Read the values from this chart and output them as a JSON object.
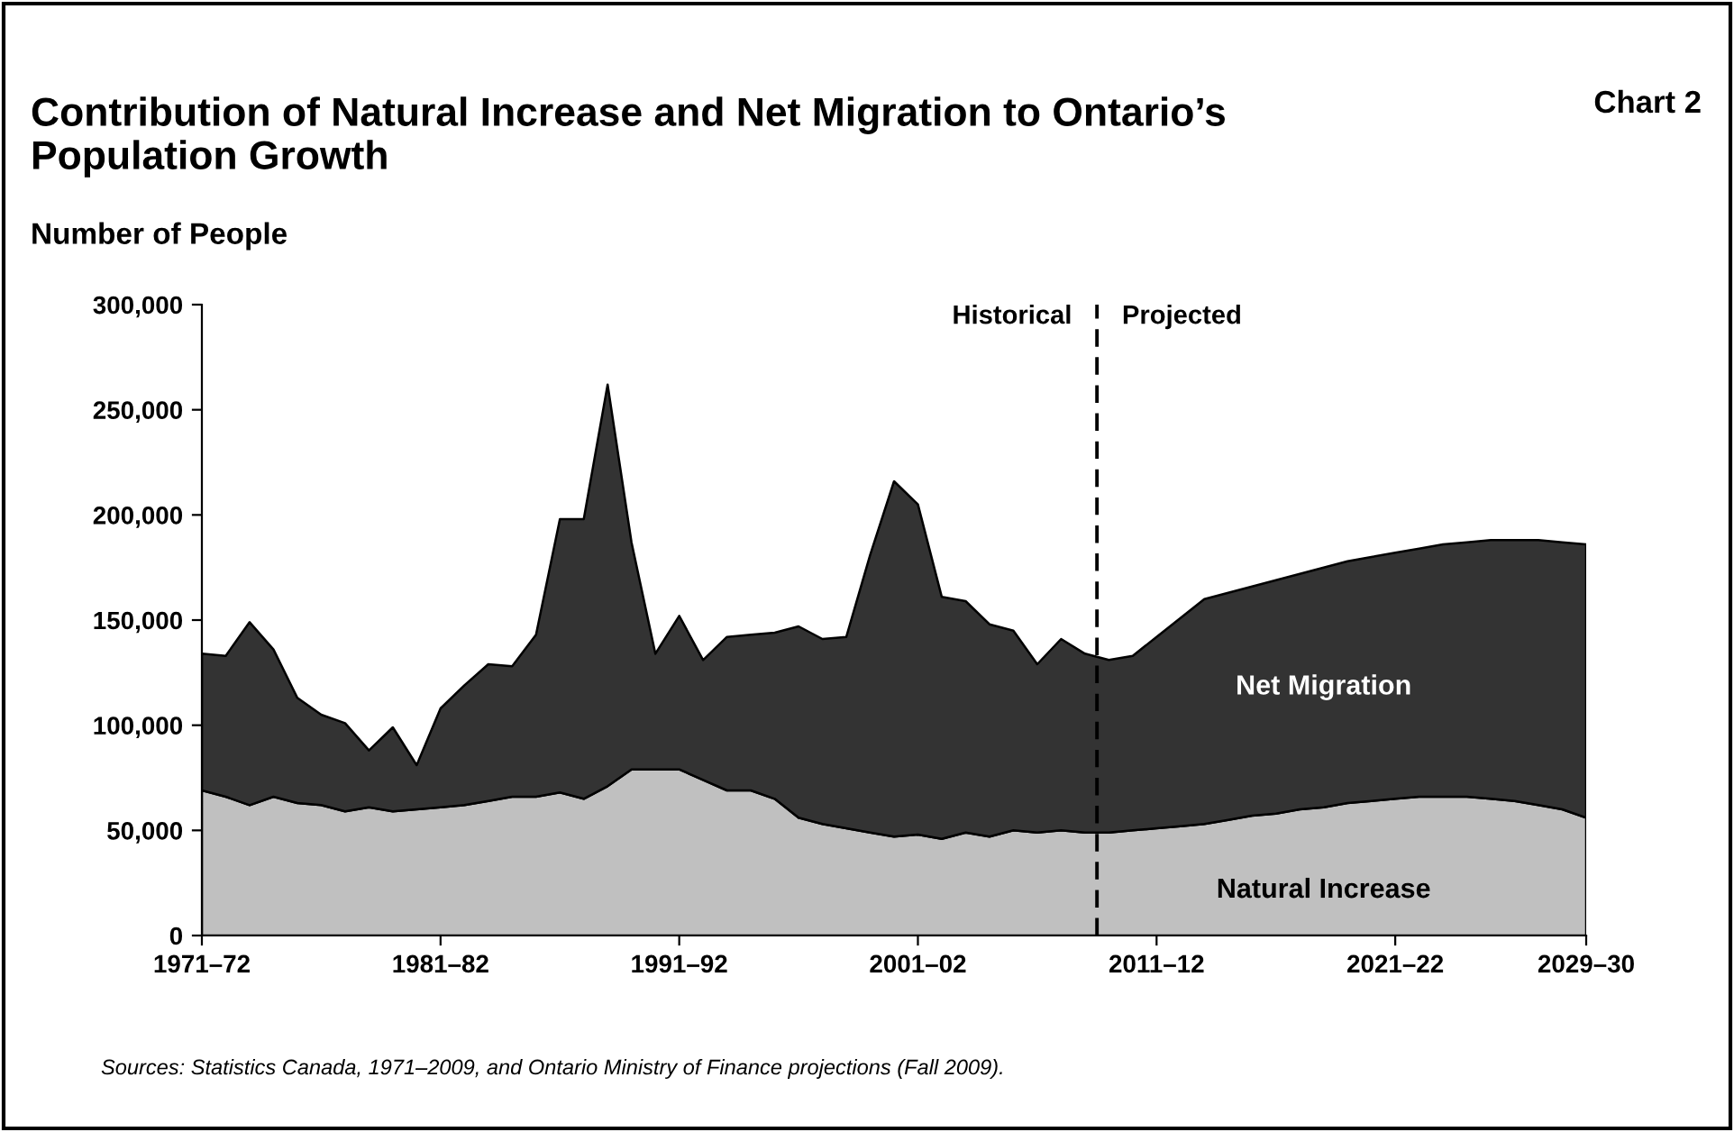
{
  "chart_data": {
    "type": "area",
    "stacked": true,
    "title": "Contribution of Natural Increase and Net Migration to Ontario’s Population Growth",
    "ylabel": "Number of People",
    "categories": [
      "1971–72",
      null,
      null,
      null,
      null,
      null,
      null,
      null,
      null,
      null,
      "1981–82",
      null,
      null,
      null,
      null,
      null,
      null,
      null,
      null,
      null,
      "1991–92",
      null,
      null,
      null,
      null,
      null,
      null,
      null,
      null,
      null,
      "2001–02",
      null,
      null,
      null,
      null,
      null,
      null,
      null,
      null,
      null,
      "2011–12",
      null,
      null,
      null,
      null,
      null,
      null,
      null,
      null,
      null,
      "2021–22",
      null,
      null,
      null,
      null,
      null,
      null,
      null,
      "2029–30"
    ],
    "series": [
      {
        "name": "Natural Increase",
        "color": "#c0c0c0",
        "values": [
          69000,
          66000,
          62000,
          66000,
          63000,
          62000,
          59000,
          61000,
          59000,
          60000,
          61000,
          62000,
          64000,
          66000,
          66000,
          68000,
          65000,
          71000,
          79000,
          79000,
          79000,
          74000,
          69000,
          69000,
          65000,
          56000,
          53000,
          51000,
          49000,
          47000,
          48000,
          46000,
          49000,
          47000,
          50000,
          49000,
          50000,
          49000,
          49000,
          50000,
          51000,
          52000,
          53000,
          55000,
          57000,
          58000,
          60000,
          61000,
          63000,
          64000,
          65000,
          66000,
          66000,
          66000,
          65000,
          64000,
          62000,
          60000,
          56000
        ]
      },
      {
        "name": "Net Migration",
        "color": "#333333",
        "values": [
          65000,
          67000,
          87000,
          70000,
          50000,
          43000,
          42000,
          27000,
          40000,
          21000,
          47000,
          57000,
          65000,
          62000,
          77000,
          130000,
          133000,
          191000,
          108000,
          55000,
          73000,
          57000,
          73000,
          74000,
          79000,
          91000,
          88000,
          91000,
          132000,
          169000,
          157000,
          115000,
          110000,
          101000,
          95000,
          80000,
          91000,
          85000,
          82000,
          83000,
          91000,
          99000,
          107000,
          108000,
          109000,
          111000,
          112000,
          114000,
          115000,
          116000,
          117000,
          118000,
          120000,
          121000,
          123000,
          124000,
          126000,
          127000,
          130000
        ]
      }
    ],
    "ylim": [
      0,
      300000
    ],
    "yticks": [
      {
        "value": 0,
        "label": "0"
      },
      {
        "value": 50000,
        "label": "50,000"
      },
      {
        "value": 100000,
        "label": "100,000"
      },
      {
        "value": 150000,
        "label": "150,000"
      },
      {
        "value": 200000,
        "label": "200,000"
      },
      {
        "value": 250000,
        "label": "250,000"
      },
      {
        "value": 300000,
        "label": "300,000"
      }
    ],
    "annotations": [
      "Chart 2",
      "Historical",
      "Projected",
      "Sources: Statistics Canada, 1971–2009, and Ontario Ministry of Finance projections (Fall 2009)."
    ],
    "grid": false
  }
}
